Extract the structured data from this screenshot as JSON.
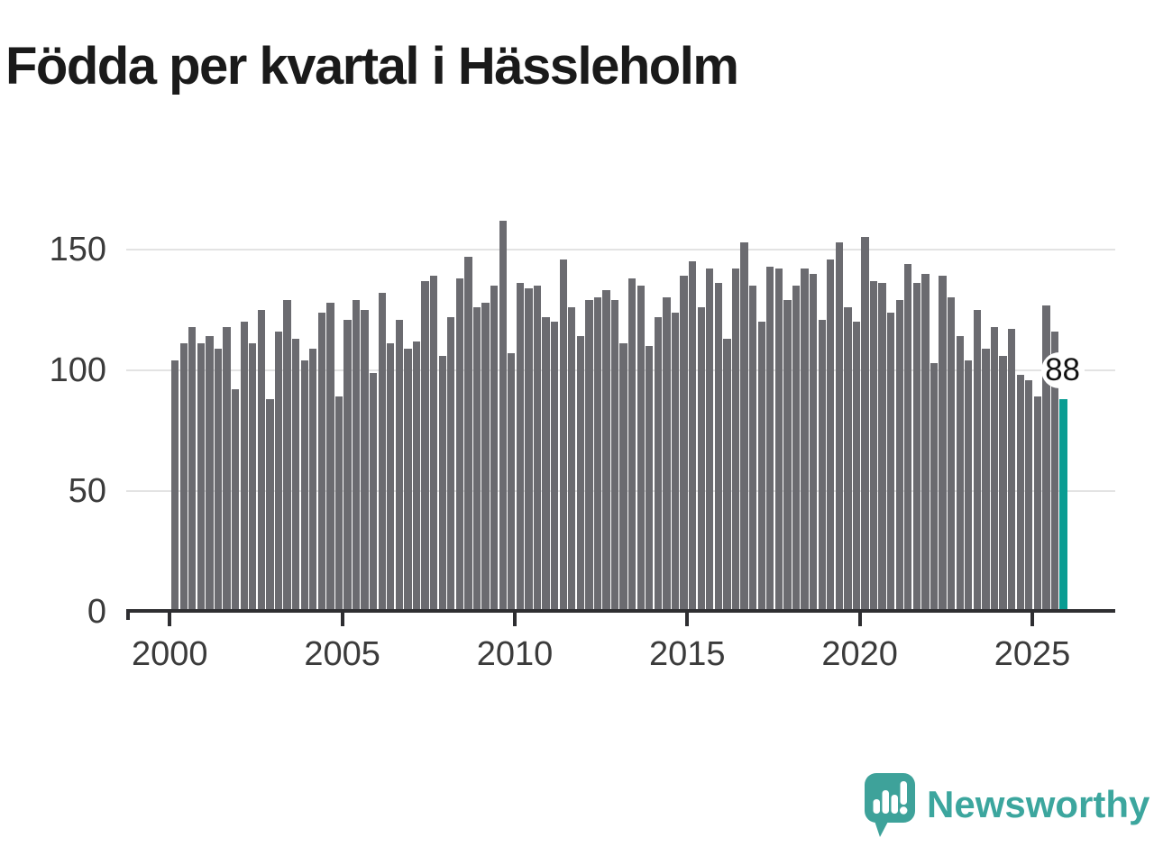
{
  "title": "Födda per kvartal i Hässleholm",
  "chart_data": {
    "type": "bar",
    "title": "Födda per kvartal i Hässleholm",
    "xlabel": "",
    "ylabel": "",
    "ylim": [
      0,
      170
    ],
    "grid": "horizontal",
    "legend_position": "none",
    "y_ticks": [
      0,
      50,
      100,
      150
    ],
    "y_tick_labels": [
      "0",
      "50",
      "100",
      "150"
    ],
    "x_tick_labels": [
      "2000",
      "2005",
      "2010",
      "2015",
      "2020",
      "2025"
    ],
    "categories": [
      "2000 Q1",
      "2000 Q2",
      "2000 Q3",
      "2000 Q4",
      "2001 Q1",
      "2001 Q2",
      "2001 Q3",
      "2001 Q4",
      "2002 Q1",
      "2002 Q2",
      "2002 Q3",
      "2002 Q4",
      "2003 Q1",
      "2003 Q2",
      "2003 Q3",
      "2003 Q4",
      "2004 Q1",
      "2004 Q2",
      "2004 Q3",
      "2004 Q4",
      "2005 Q1",
      "2005 Q2",
      "2005 Q3",
      "2005 Q4",
      "2006 Q1",
      "2006 Q2",
      "2006 Q3",
      "2006 Q4",
      "2007 Q1",
      "2007 Q2",
      "2007 Q3",
      "2007 Q4",
      "2008 Q1",
      "2008 Q2",
      "2008 Q3",
      "2008 Q4",
      "2009 Q1",
      "2009 Q2",
      "2009 Q3",
      "2009 Q4",
      "2010 Q1",
      "2010 Q2",
      "2010 Q3",
      "2010 Q4",
      "2011 Q1",
      "2011 Q2",
      "2011 Q3",
      "2011 Q4",
      "2012 Q1",
      "2012 Q2",
      "2012 Q3",
      "2012 Q4",
      "2013 Q1",
      "2013 Q2",
      "2013 Q3",
      "2013 Q4",
      "2014 Q1",
      "2014 Q2",
      "2014 Q3",
      "2014 Q4",
      "2015 Q1",
      "2015 Q2",
      "2015 Q3",
      "2015 Q4",
      "2016 Q1",
      "2016 Q2",
      "2016 Q3",
      "2016 Q4",
      "2017 Q1",
      "2017 Q2",
      "2017 Q3",
      "2017 Q4",
      "2018 Q1",
      "2018 Q2",
      "2018 Q3",
      "2018 Q4",
      "2019 Q1",
      "2019 Q2",
      "2019 Q3",
      "2019 Q4",
      "2020 Q1",
      "2020 Q2",
      "2020 Q3",
      "2020 Q4",
      "2021 Q1",
      "2021 Q2",
      "2021 Q3",
      "2021 Q4",
      "2022 Q1",
      "2022 Q2",
      "2022 Q3",
      "2022 Q4",
      "2023 Q1",
      "2023 Q2",
      "2023 Q3",
      "2023 Q4",
      "2024 Q1",
      "2024 Q2",
      "2024 Q3",
      "2024 Q4",
      "2025 Q1",
      "2025 Q2",
      "2025 Q3",
      "2025 Q4"
    ],
    "values": [
      104,
      111,
      118,
      111,
      114,
      109,
      118,
      92,
      120,
      111,
      125,
      88,
      116,
      129,
      113,
      104,
      109,
      124,
      128,
      89,
      121,
      129,
      125,
      99,
      132,
      111,
      121,
      109,
      112,
      137,
      139,
      106,
      122,
      138,
      147,
      126,
      128,
      135,
      162,
      107,
      136,
      134,
      135,
      122,
      120,
      146,
      126,
      114,
      129,
      130,
      133,
      129,
      111,
      138,
      135,
      110,
      122,
      130,
      124,
      139,
      145,
      126,
      142,
      136,
      113,
      142,
      153,
      135,
      120,
      143,
      142,
      129,
      135,
      142,
      140,
      121,
      146,
      153,
      126,
      120,
      155,
      137,
      136,
      124,
      129,
      144,
      136,
      140,
      103,
      139,
      130,
      114,
      104,
      125,
      109,
      118,
      106,
      117,
      98,
      96,
      89,
      127,
      116,
      88
    ],
    "highlight_index": 103,
    "highlight_label": "88",
    "bar_color": "#6b6b70",
    "highlight_color": "#0a9c92",
    "grid_color": "#e3e3e3",
    "axis_color": "#2e2e31"
  },
  "footer": {
    "brand": "Newsworthy",
    "brand_color": "#3ca69e"
  }
}
